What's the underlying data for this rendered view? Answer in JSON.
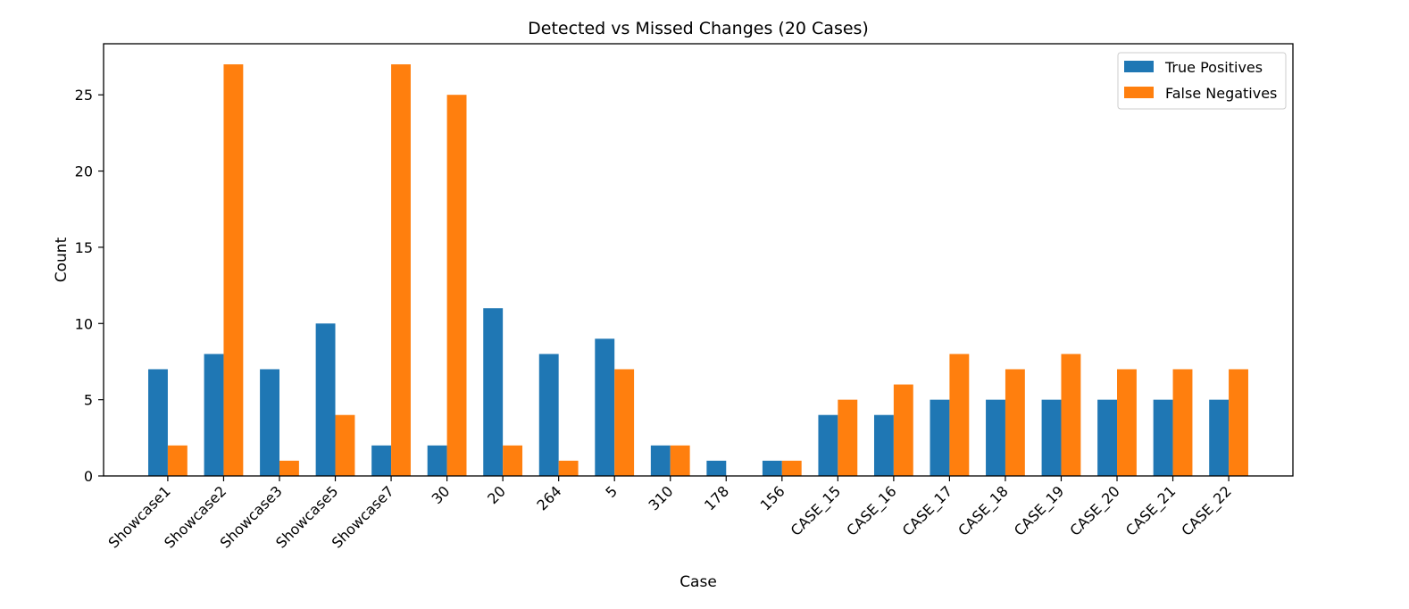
{
  "chart_data": {
    "type": "bar",
    "title": "Detected vs Missed Changes (20 Cases)",
    "xlabel": "Case",
    "ylabel": "Count",
    "ylim": [
      0,
      28.35
    ],
    "yticks": [
      0,
      5,
      10,
      15,
      20,
      25
    ],
    "grid": false,
    "legend_position": "top-right",
    "categories": [
      "Showcase1",
      "Showcase2",
      "Showcase3",
      "Showcase5",
      "Showcase7",
      "30",
      "20",
      "264",
      "5",
      "310",
      "178",
      "156",
      "CASE_15",
      "CASE_16",
      "CASE_17",
      "CASE_18",
      "CASE_19",
      "CASE_20",
      "CASE_21",
      "CASE_22"
    ],
    "series": [
      {
        "name": "True Positives",
        "color": "#1f77b4",
        "values": [
          7,
          8,
          7,
          10,
          2,
          2,
          11,
          8,
          9,
          2,
          1,
          1,
          4,
          4,
          5,
          5,
          5,
          5,
          5,
          5
        ]
      },
      {
        "name": "False Negatives",
        "color": "#ff7f0e",
        "values": [
          2,
          27,
          1,
          4,
          27,
          25,
          2,
          1,
          7,
          2,
          0,
          1,
          5,
          6,
          8,
          7,
          8,
          7,
          7,
          7
        ]
      }
    ]
  }
}
